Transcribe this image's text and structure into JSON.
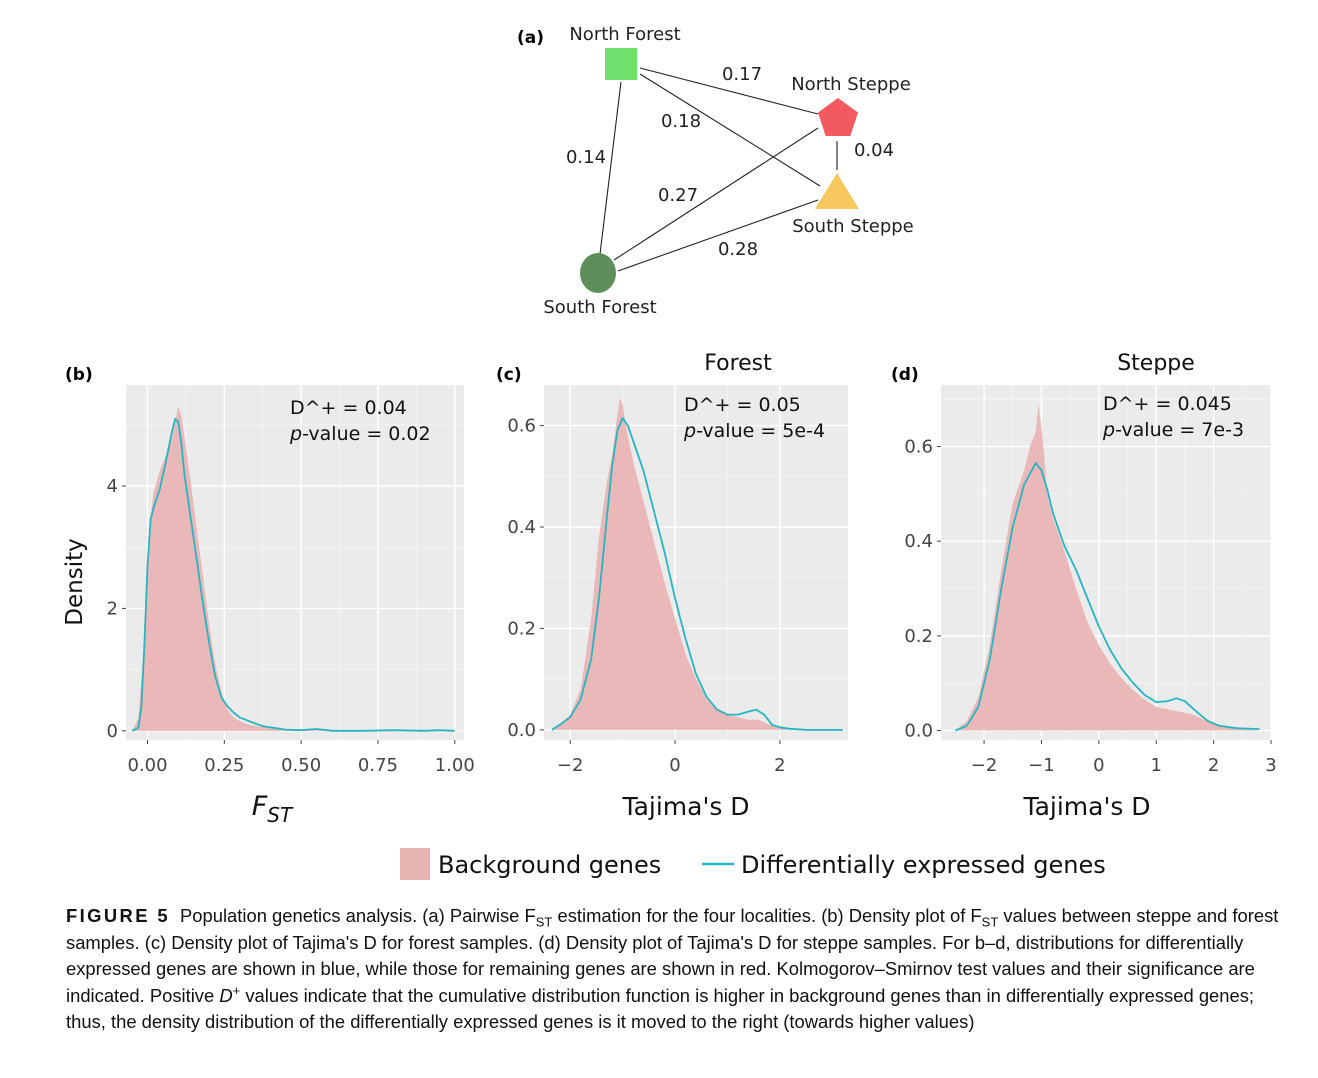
{
  "network": {
    "panel_label": "(a)",
    "nodes": [
      {
        "id": "nf",
        "label": "North Forest",
        "shape": "square",
        "color": "#6ee06e"
      },
      {
        "id": "ns",
        "label": "North Steppe",
        "shape": "pentagon",
        "color": "#f25a5f"
      },
      {
        "id": "ss",
        "label": "South Steppe",
        "shape": "triangle",
        "color": "#f6c85e"
      },
      {
        "id": "sf",
        "label": "South Forest",
        "shape": "circle",
        "color": "#5e8f5b"
      }
    ],
    "edges": [
      {
        "from": "nf",
        "to": "ns",
        "value": "0.17"
      },
      {
        "from": "nf",
        "to": "ss",
        "value": "0.18"
      },
      {
        "from": "nf",
        "to": "sf",
        "value": "0.14"
      },
      {
        "from": "ns",
        "to": "ss",
        "value": "0.04"
      },
      {
        "from": "ns",
        "to": "sf",
        "value": "0.27"
      },
      {
        "from": "ss",
        "to": "sf",
        "value": "0.28"
      }
    ]
  },
  "chart_data": [
    {
      "type": "area",
      "panel_label": "(b)",
      "title": "",
      "xlabel_main": "F",
      "xlabel_sub": "ST",
      "ylabel": "Density",
      "xlim": [
        -0.07,
        1.03
      ],
      "ylim": [
        -0.15,
        5.65
      ],
      "x_ticks": [
        "0.00",
        "0.25",
        "0.50",
        "0.75",
        "1.00"
      ],
      "x_tick_values": [
        0,
        0.25,
        0.5,
        0.75,
        1.0
      ],
      "y_ticks": [
        "0",
        "2",
        "4"
      ],
      "y_tick_values": [
        0,
        2,
        4
      ],
      "stat_line1": "D^+ = 0.04",
      "stat_line2_italic": "p",
      "stat_line2_rest": "-value = 0.02",
      "series": [
        {
          "name": "Background genes",
          "x": [
            -0.05,
            -0.03,
            -0.01,
            0.0,
            0.01,
            0.02,
            0.04,
            0.06,
            0.08,
            0.09,
            0.1,
            0.11,
            0.12,
            0.14,
            0.16,
            0.18,
            0.2,
            0.22,
            0.24,
            0.26,
            0.28,
            0.3,
            0.33,
            0.36,
            0.4,
            0.45,
            0.5,
            0.6,
            0.7,
            0.8,
            0.9,
            1.0
          ],
          "values": [
            0.0,
            0.2,
            1.5,
            2.6,
            3.5,
            3.9,
            4.25,
            4.5,
            4.8,
            5.05,
            5.3,
            5.15,
            4.8,
            4.1,
            3.3,
            2.55,
            1.75,
            1.1,
            0.65,
            0.35,
            0.22,
            0.16,
            0.1,
            0.07,
            0.05,
            0.03,
            0.02,
            0.01,
            0.01,
            0.0,
            0.0,
            0.0
          ]
        },
        {
          "name": "Differentially expressed genes",
          "x": [
            -0.05,
            -0.03,
            -0.02,
            -0.01,
            0.0,
            0.01,
            0.02,
            0.04,
            0.06,
            0.08,
            0.09,
            0.1,
            0.11,
            0.12,
            0.14,
            0.16,
            0.18,
            0.2,
            0.22,
            0.24,
            0.26,
            0.28,
            0.3,
            0.32,
            0.35,
            0.38,
            0.41,
            0.45,
            0.5,
            0.55,
            0.6,
            0.7,
            0.8,
            0.9,
            0.95,
            1.0
          ],
          "values": [
            0.0,
            0.05,
            0.4,
            1.4,
            2.7,
            3.45,
            3.65,
            3.95,
            4.4,
            4.9,
            5.1,
            5.05,
            4.7,
            4.2,
            3.5,
            2.8,
            2.1,
            1.45,
            0.9,
            0.55,
            0.4,
            0.3,
            0.22,
            0.18,
            0.12,
            0.07,
            0.05,
            0.02,
            0.01,
            0.03,
            0.0,
            0.0,
            0.01,
            0.0,
            0.01,
            0.0
          ]
        }
      ]
    },
    {
      "type": "area",
      "panel_label": "(c)",
      "title": "Forest",
      "xlabel": "Tajima's D",
      "ylabel": "",
      "xlim": [
        -2.5,
        3.3
      ],
      "ylim": [
        -0.02,
        0.68
      ],
      "x_ticks": [
        "−2",
        "0",
        "2"
      ],
      "x_tick_values": [
        -2,
        0,
        2
      ],
      "y_ticks": [
        "0.0",
        "0.2",
        "0.4",
        "0.6"
      ],
      "y_tick_values": [
        0.0,
        0.2,
        0.4,
        0.6
      ],
      "stat_line1": "D^+ = 0.05",
      "stat_line2_italic": "p",
      "stat_line2_rest": "-value = 5e-4",
      "series": [
        {
          "name": "Background genes",
          "x": [
            -2.35,
            -2.2,
            -2.0,
            -1.8,
            -1.6,
            -1.45,
            -1.3,
            -1.2,
            -1.1,
            -1.05,
            -1.0,
            -0.9,
            -0.8,
            -0.6,
            -0.4,
            -0.2,
            0.0,
            0.2,
            0.4,
            0.6,
            0.8,
            1.0,
            1.2,
            1.4,
            1.6,
            1.8,
            2.0,
            2.3,
            2.7,
            3.1
          ],
          "values": [
            0.0,
            0.01,
            0.03,
            0.08,
            0.22,
            0.38,
            0.49,
            0.54,
            0.62,
            0.655,
            0.64,
            0.58,
            0.53,
            0.45,
            0.37,
            0.29,
            0.22,
            0.15,
            0.1,
            0.06,
            0.04,
            0.03,
            0.025,
            0.02,
            0.02,
            0.01,
            0.005,
            0.0,
            0.0,
            0.0
          ]
        },
        {
          "name": "Differentially expressed genes",
          "x": [
            -2.35,
            -2.2,
            -2.0,
            -1.8,
            -1.6,
            -1.45,
            -1.3,
            -1.2,
            -1.1,
            -1.0,
            -0.9,
            -0.8,
            -0.6,
            -0.4,
            -0.2,
            0.0,
            0.2,
            0.4,
            0.6,
            0.8,
            1.0,
            1.2,
            1.4,
            1.55,
            1.7,
            1.85,
            2.0,
            2.2,
            2.5,
            2.9,
            3.2
          ],
          "values": [
            0.0,
            0.01,
            0.025,
            0.06,
            0.14,
            0.26,
            0.42,
            0.52,
            0.59,
            0.615,
            0.6,
            0.57,
            0.51,
            0.43,
            0.35,
            0.26,
            0.18,
            0.11,
            0.065,
            0.04,
            0.03,
            0.03,
            0.036,
            0.04,
            0.03,
            0.01,
            0.005,
            0.002,
            0.0,
            0.0,
            0.0
          ]
        }
      ]
    },
    {
      "type": "area",
      "panel_label": "(d)",
      "title": "Steppe",
      "xlabel": "Tajima's D",
      "ylabel": "",
      "xlim": [
        -2.75,
        3.0
      ],
      "ylim": [
        -0.02,
        0.73
      ],
      "x_ticks": [
        "−2",
        "−1",
        "0",
        "1",
        "2",
        "3"
      ],
      "x_tick_values": [
        -2,
        -1,
        0,
        1,
        2,
        3
      ],
      "y_ticks": [
        "0.0",
        "0.2",
        "0.4",
        "0.6"
      ],
      "y_tick_values": [
        0.0,
        0.2,
        0.4,
        0.6
      ],
      "stat_line1": "D^+ = 0.045",
      "stat_line2_italic": "p",
      "stat_line2_rest": "-value = 7e-3",
      "series": [
        {
          "name": "Background genes",
          "x": [
            -2.5,
            -2.3,
            -2.1,
            -1.9,
            -1.7,
            -1.5,
            -1.3,
            -1.2,
            -1.1,
            -1.05,
            -1.0,
            -0.95,
            -0.9,
            -0.8,
            -0.6,
            -0.4,
            -0.2,
            0.0,
            0.2,
            0.4,
            0.6,
            0.8,
            1.0,
            1.2,
            1.4,
            1.6,
            1.8,
            2.0,
            2.2,
            2.5,
            2.8
          ],
          "values": [
            0.0,
            0.02,
            0.07,
            0.18,
            0.34,
            0.48,
            0.55,
            0.6,
            0.63,
            0.69,
            0.64,
            0.58,
            0.5,
            0.45,
            0.38,
            0.3,
            0.23,
            0.18,
            0.14,
            0.11,
            0.085,
            0.065,
            0.05,
            0.045,
            0.04,
            0.035,
            0.025,
            0.015,
            0.01,
            0.005,
            0.0
          ]
        },
        {
          "name": "Differentially expressed genes",
          "x": [
            -2.5,
            -2.3,
            -2.1,
            -1.9,
            -1.7,
            -1.5,
            -1.3,
            -1.1,
            -1.0,
            -0.9,
            -0.8,
            -0.6,
            -0.4,
            -0.2,
            0.0,
            0.2,
            0.4,
            0.6,
            0.8,
            1.0,
            1.2,
            1.35,
            1.5,
            1.7,
            1.9,
            2.1,
            2.4,
            2.8
          ],
          "values": [
            0.0,
            0.01,
            0.05,
            0.15,
            0.3,
            0.43,
            0.52,
            0.565,
            0.55,
            0.51,
            0.46,
            0.39,
            0.34,
            0.28,
            0.22,
            0.17,
            0.13,
            0.1,
            0.075,
            0.06,
            0.062,
            0.068,
            0.062,
            0.04,
            0.02,
            0.01,
            0.005,
            0.003
          ]
        }
      ]
    }
  ],
  "legend": {
    "items": [
      {
        "name": "Background genes",
        "color": "#e8b3b3",
        "kind": "fill"
      },
      {
        "name": "Differentially expressed genes",
        "color": "#26b6c1",
        "kind": "line"
      }
    ]
  },
  "colors": {
    "background_fill": "#eab8b8",
    "de_line": "#26b6c1",
    "panel_bg": "#ebebeb",
    "grid": "#ffffff"
  },
  "caption": {
    "label": "FIGURE 5",
    "text_parts": [
      {
        "t": "Population genetics analysis. (a) Pairwise F"
      },
      {
        "t": "ST",
        "sub": true
      },
      {
        "t": " estimation for the four localities. (b) Density plot of F"
      },
      {
        "t": "ST",
        "sub": true
      },
      {
        "t": " values between steppe and forest samples. (c) Density plot of Tajima's D for forest samples. (d) Density plot of Tajima's D for steppe samples. For b–d, distributions for differentially expressed genes are shown in blue, while those for remaining genes are shown in red. Kolmogorov–Smirnov test values and their significance are indicated. Positive "
      },
      {
        "t": "D",
        "italic": true
      },
      {
        "t": "+",
        "sup": true
      },
      {
        "t": " values indicate that the cumulative distribution function is higher in background genes than in differentially expressed genes; thus, the density distribution of the differentially expressed genes is it moved to the right (towards higher values)"
      }
    ]
  }
}
